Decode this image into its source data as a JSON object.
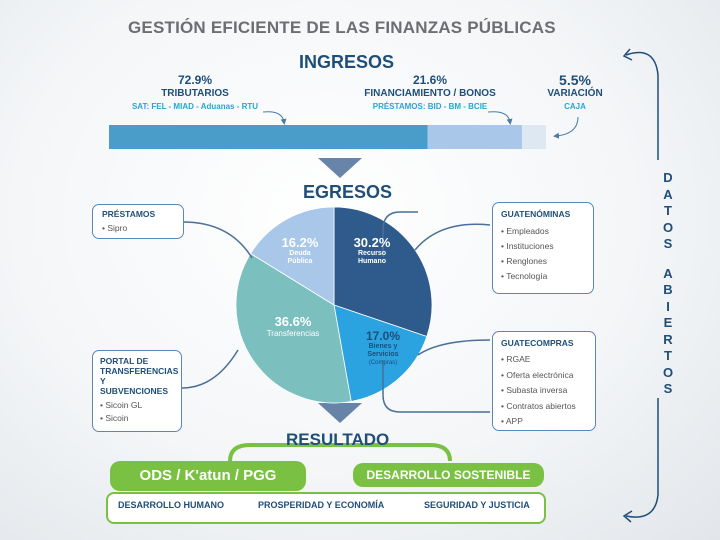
{
  "title": "GESTIÓN EFICIENTE DE LAS FINANZAS PÚBLICAS",
  "ingresos": {
    "heading": "INGRESOS",
    "tributarios": {
      "pct": "72.9%",
      "label": "TRIBUTARIOS",
      "sub": "SAT:  FEL - MIAD - Aduanas - RTU",
      "value": 72.9
    },
    "financiamiento": {
      "pct": "21.6%",
      "label": "FINANCIAMIENTO / BONOS",
      "sub": "PRÉSTAMOS:  BID - BM - BCIE",
      "value": 21.6
    },
    "variacion": {
      "pct": "5.5%",
      "label": "VARIACIÓN",
      "sub": "CAJA",
      "value": 5.5
    }
  },
  "egresos": {
    "heading": "EGRESOS",
    "slices": [
      {
        "pct": "30.2%",
        "label_1": "Recurso",
        "label_2": "Humano",
        "value": 30.2,
        "color": "#2e5a8c"
      },
      {
        "pct": "17.0%",
        "label_1": "Bienes y",
        "label_2": "Servicios",
        "note": "(Compras)",
        "value": 17.0,
        "color": "#2aa3e0"
      },
      {
        "pct": "36.6%",
        "label_1": "Transferencias",
        "value": 36.6,
        "color": "#7bbfbf"
      },
      {
        "pct": "16.2%",
        "label_1": "Deuda",
        "label_2": "Pública",
        "value": 16.2,
        "color": "#a9c7e8"
      }
    ]
  },
  "prestamos_box": {
    "title": "PRÉSTAMOS",
    "items": [
      "Sipro"
    ]
  },
  "portal_box": {
    "title_1": "PORTAL DE",
    "title_2": "TRANSFERENCIAS",
    "title_3": "Y SUBVENCIONES",
    "items": [
      "Sicoin GL",
      "Sicoin"
    ]
  },
  "guatenominas_box": {
    "title": "GUATENÓMINAS",
    "items": [
      "Empleados",
      "Instituciones",
      "Renglones",
      "Tecnología"
    ]
  },
  "guatecompras_box": {
    "title": "GUATECOMPRAS",
    "items": [
      "RGAE",
      "Oferta electrónica",
      "Subasta inversa",
      "Contratos abiertos",
      "APP"
    ]
  },
  "datos_abiertos": [
    "D",
    "A",
    "T",
    "O",
    "S",
    "",
    "A",
    "B",
    "I",
    "E",
    "R",
    "T",
    "O",
    "S"
  ],
  "resultado": {
    "heading": "RESULTADO",
    "ods": "ODS / K'atun / PGG",
    "desarrollo_sostenible": "DESARROLLO SOSTENIBLE",
    "desarrollo_humano": "DESARROLLO HUMANO",
    "prosperidad": "PROSPERIDAD Y ECONOMÍA",
    "seguridad": "SEGURIDAD Y JUSTICIA"
  },
  "colors": {
    "dark_blue": "#1f4e79",
    "cyan": "#2aa3d8",
    "green": "#7ac143",
    "box_border": "#5b87b7"
  }
}
